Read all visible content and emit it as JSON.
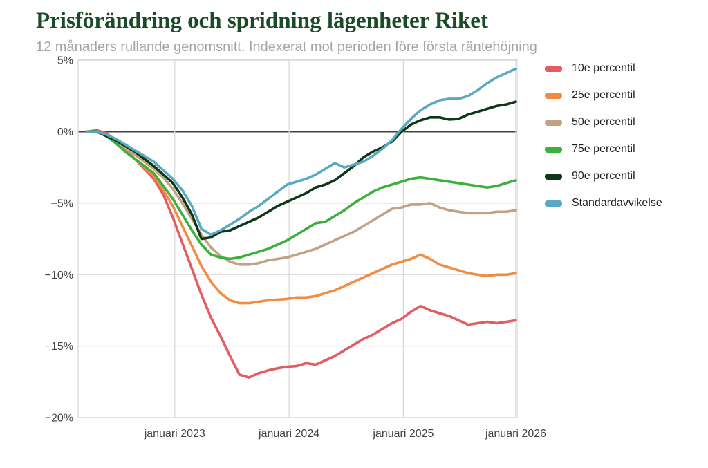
{
  "header": {
    "title": "Prisförändring och spridning lägenheter Riket",
    "subtitle": "12 månaders rullande genomsnitt. Indexerat mot perioden före första räntehöjning"
  },
  "colors": {
    "title_green": "#1a4a28",
    "subtitle_gray": "#a5a5a5",
    "grid": "#d9d9d9",
    "zero_line": "#424242",
    "axis_text": "#424242",
    "background": "#ffffff"
  },
  "chart_data": {
    "type": "line",
    "ylim": [
      -20,
      5
    ],
    "grid": true,
    "zero_line": true,
    "legend_position": "right",
    "x_unit": "months from first rate hike (12-month rolling average)",
    "y_unit": "percent",
    "y_ticks": [
      {
        "label": "5%",
        "value": 5
      },
      {
        "label": "0%",
        "value": 0
      },
      {
        "label": "−5%",
        "value": -5
      },
      {
        "label": "−10%",
        "value": -10
      },
      {
        "label": "−15%",
        "value": -15
      },
      {
        "label": "−20%",
        "value": -20
      }
    ],
    "x_ticks": [
      {
        "label": "januari 2023",
        "month_index": 9.2
      },
      {
        "label": "januari 2024",
        "month_index": 21.2
      },
      {
        "label": "januari 2025",
        "month_index": 33.2
      },
      {
        "label": "januari 2026",
        "month_index": 45
      }
    ],
    "series": [
      {
        "name": "10e percentil",
        "color": "#e25c62",
        "values": [
          0,
          0.1,
          -0.1,
          -0.6,
          -1.2,
          -1.9,
          -2.6,
          -3.3,
          -4.4,
          -6.0,
          -7.8,
          -9.6,
          -11.4,
          -13.0,
          -14.3,
          -15.7,
          -17.0,
          -17.2,
          -16.9,
          -16.7,
          -16.55,
          -16.45,
          -16.4,
          -16.2,
          -16.3,
          -16.0,
          -15.7,
          -15.3,
          -14.9,
          -14.5,
          -14.2,
          -13.8,
          -13.4,
          -13.1,
          -12.6,
          -12.2,
          -12.5,
          -12.7,
          -12.9,
          -13.2,
          -13.5,
          -13.4,
          -13.3,
          -13.4,
          -13.3,
          -13.2
        ]
      },
      {
        "name": "25e percentil",
        "color": "#f28c43",
        "values": [
          0,
          0.05,
          -0.3,
          -0.7,
          -1.3,
          -1.9,
          -2.5,
          -3.1,
          -4.1,
          -5.2,
          -6.6,
          -8.0,
          -9.4,
          -10.5,
          -11.3,
          -11.8,
          -12.0,
          -12.0,
          -11.9,
          -11.8,
          -11.75,
          -11.7,
          -11.6,
          -11.6,
          -11.5,
          -11.3,
          -11.1,
          -10.8,
          -10.5,
          -10.2,
          -9.9,
          -9.6,
          -9.3,
          -9.1,
          -8.9,
          -8.6,
          -8.9,
          -9.3,
          -9.5,
          -9.7,
          -9.9,
          -10.0,
          -10.1,
          -10.0,
          -10.0,
          -9.9
        ]
      },
      {
        "name": "50e percentil",
        "color": "#c2a283",
        "values": [
          0,
          0.05,
          -0.25,
          -0.6,
          -1.1,
          -1.6,
          -2.1,
          -2.6,
          -3.2,
          -4.0,
          -5.0,
          -6.1,
          -7.2,
          -8.1,
          -8.7,
          -9.1,
          -9.3,
          -9.3,
          -9.2,
          -9.0,
          -8.9,
          -8.8,
          -8.6,
          -8.4,
          -8.2,
          -7.9,
          -7.6,
          -7.3,
          -7.0,
          -6.6,
          -6.2,
          -5.8,
          -5.4,
          -5.3,
          -5.1,
          -5.1,
          -5.0,
          -5.3,
          -5.5,
          -5.6,
          -5.7,
          -5.7,
          -5.7,
          -5.6,
          -5.6,
          -5.5
        ]
      },
      {
        "name": "75e percentil",
        "color": "#3caf3c",
        "values": [
          0,
          0.05,
          -0.3,
          -0.8,
          -1.4,
          -1.9,
          -2.4,
          -2.9,
          -3.8,
          -4.7,
          -5.8,
          -6.9,
          -7.9,
          -8.6,
          -8.8,
          -8.9,
          -8.8,
          -8.6,
          -8.4,
          -8.2,
          -7.9,
          -7.6,
          -7.2,
          -6.8,
          -6.4,
          -6.3,
          -5.9,
          -5.5,
          -5.0,
          -4.6,
          -4.2,
          -3.9,
          -3.7,
          -3.5,
          -3.3,
          -3.2,
          -3.3,
          -3.4,
          -3.5,
          -3.6,
          -3.7,
          -3.8,
          -3.9,
          -3.8,
          -3.6,
          -3.4
        ]
      },
      {
        "name": "90e percentil",
        "color": "#0d3716",
        "values": [
          0,
          0,
          -0.3,
          -0.6,
          -1.0,
          -1.4,
          -1.9,
          -2.4,
          -3.0,
          -3.6,
          -4.6,
          -5.8,
          -7.5,
          -7.4,
          -7.0,
          -6.9,
          -6.6,
          -6.3,
          -6.0,
          -5.6,
          -5.2,
          -4.9,
          -4.6,
          -4.3,
          -3.9,
          -3.7,
          -3.4,
          -2.9,
          -2.4,
          -1.8,
          -1.4,
          -1.1,
          -0.7,
          0.0,
          0.5,
          0.8,
          1.0,
          1.0,
          0.85,
          0.9,
          1.2,
          1.4,
          1.6,
          1.8,
          1.9,
          2.1
        ]
      },
      {
        "name": "Standardavvikelse",
        "color": "#5aa9c2",
        "values": [
          0,
          0,
          -0.2,
          -0.5,
          -0.9,
          -1.3,
          -1.7,
          -2.1,
          -2.7,
          -3.3,
          -4.1,
          -5.2,
          -6.8,
          -7.2,
          -6.9,
          -6.5,
          -6.1,
          -5.6,
          -5.2,
          -4.7,
          -4.2,
          -3.7,
          -3.5,
          -3.3,
          -3.0,
          -2.6,
          -2.2,
          -2.5,
          -2.3,
          -2.1,
          -1.7,
          -1.2,
          -0.6,
          0.2,
          0.9,
          1.5,
          1.9,
          2.2,
          2.3,
          2.3,
          2.5,
          2.9,
          3.4,
          3.8,
          4.1,
          4.4
        ]
      }
    ]
  }
}
